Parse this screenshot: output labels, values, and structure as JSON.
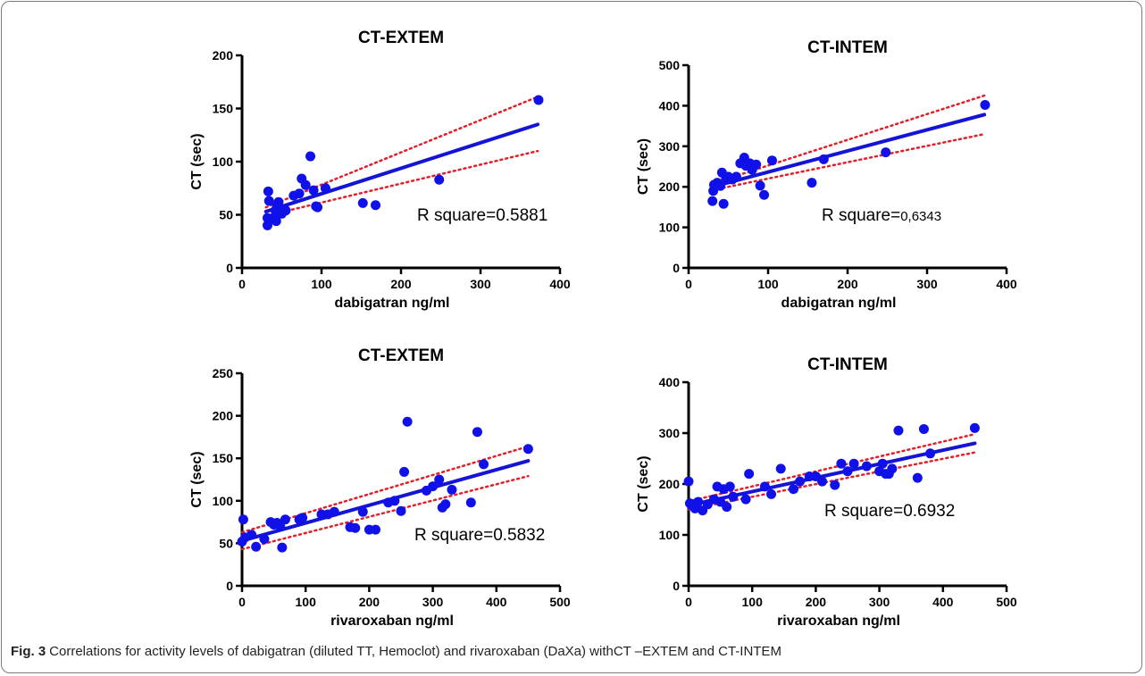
{
  "caption": {
    "label": "Fig. 3",
    "text": "Correlations for activity levels of dabigatran (diluted TT, Hemoclot) and rivaroxaban (DaXa) withCT –EXTEM and CT-INTEM"
  },
  "colors": {
    "points": "#1010e8",
    "fit": "#1414d6",
    "ci": "#e0202a"
  },
  "chart_data": [
    {
      "type": "scatter",
      "title": "CT-EXTEM",
      "xlabel": "dabigatran ng/ml",
      "ylabel": "CT (sec)",
      "xlim": [
        0,
        400
      ],
      "ylim": [
        0,
        200
      ],
      "xticks": [
        0,
        100,
        200,
        300,
        400
      ],
      "yticks": [
        0,
        50,
        100,
        150,
        200
      ],
      "annotation": {
        "prefix": "R square=",
        "value": "0.5881"
      },
      "fit": {
        "x": [
          30,
          372
        ],
        "y": [
          53,
          135
        ]
      },
      "ci_upper": {
        "x": [
          30,
          372
        ],
        "y": [
          57,
          161
        ]
      },
      "ci_lower": {
        "x": [
          30,
          372
        ],
        "y": [
          49,
          110
        ]
      },
      "points": {
        "x": [
          32,
          32,
          33,
          34,
          36,
          40,
          42,
          43,
          44,
          46,
          48,
          50,
          52,
          55,
          65,
          72,
          75,
          80,
          86,
          90,
          93,
          95,
          105,
          152,
          168,
          248,
          373
        ],
        "y": [
          40,
          47,
          72,
          63,
          46,
          47,
          54,
          44,
          58,
          62,
          52,
          51,
          55,
          54,
          68,
          70,
          84,
          78,
          105,
          73,
          58,
          57,
          75,
          61,
          59,
          83,
          158
        ]
      }
    },
    {
      "type": "scatter",
      "title": "CT-INTEM",
      "xlabel": "dabigatran ng/ml",
      "ylabel": "CT (sec)",
      "xlim": [
        0,
        400
      ],
      "ylim": [
        0,
        500
      ],
      "xticks": [
        0,
        100,
        200,
        300,
        400
      ],
      "yticks": [
        0,
        100,
        200,
        300,
        400,
        500
      ],
      "annotation": {
        "prefix": "R square=",
        "value": "0,6343"
      },
      "fit": {
        "x": [
          30,
          372
        ],
        "y": [
          200,
          378
        ]
      },
      "ci_upper": {
        "x": [
          30,
          372
        ],
        "y": [
          208,
          425
        ]
      },
      "ci_lower": {
        "x": [
          30,
          372
        ],
        "y": [
          192,
          330
        ]
      },
      "points": {
        "x": [
          30,
          31,
          32,
          33,
          36,
          40,
          42,
          44,
          47,
          50,
          55,
          60,
          65,
          70,
          72,
          77,
          80,
          85,
          90,
          95,
          105,
          155,
          170,
          248,
          373
        ],
        "y": [
          165,
          190,
          205,
          203,
          210,
          202,
          235,
          158,
          220,
          225,
          218,
          225,
          258,
          272,
          252,
          258,
          242,
          255,
          203,
          180,
          265,
          210,
          268,
          285,
          402
        ]
      }
    },
    {
      "type": "scatter",
      "title": "CT-EXTEM",
      "xlabel": "rivaroxaban ng/ml",
      "ylabel": "CT (sec)",
      "xlim": [
        0,
        500
      ],
      "ylim": [
        0,
        250
      ],
      "xticks": [
        0,
        100,
        200,
        300,
        400,
        500
      ],
      "yticks": [
        0,
        50,
        100,
        150,
        200,
        250
      ],
      "annotation": {
        "prefix": "R square=",
        "value": "0.5832"
      },
      "fit": {
        "x": [
          0,
          450
        ],
        "y": [
          53,
          147
        ]
      },
      "ci_upper": {
        "x": [
          0,
          450
        ],
        "y": [
          63,
          164
        ]
      },
      "ci_lower": {
        "x": [
          0,
          450
        ],
        "y": [
          43,
          129
        ]
      },
      "points": {
        "x": [
          0,
          2,
          5,
          15,
          22,
          35,
          45,
          50,
          55,
          60,
          63,
          68,
          90,
          95,
          125,
          135,
          145,
          170,
          178,
          190,
          200,
          210,
          230,
          240,
          250,
          255,
          260,
          290,
          300,
          310,
          315,
          320,
          330,
          360,
          370,
          380,
          450
        ],
        "y": [
          52,
          78,
          57,
          60,
          46,
          55,
          75,
          72,
          74,
          70,
          45,
          78,
          78,
          80,
          84,
          84,
          87,
          69,
          68,
          87,
          66,
          66,
          98,
          100,
          88,
          134,
          193,
          112,
          117,
          125,
          92,
          96,
          113,
          98,
          181,
          143,
          161
        ]
      }
    },
    {
      "type": "scatter",
      "title": "CT-INTEM",
      "xlabel": "rivaroxaban ng/ml",
      "ylabel": "CT (sec)",
      "xlim": [
        0,
        500
      ],
      "ylim": [
        0,
        400
      ],
      "xticks": [
        0,
        100,
        200,
        300,
        400,
        500
      ],
      "yticks": [
        0,
        100,
        200,
        300,
        400
      ],
      "annotation": {
        "prefix": "R square=",
        "value": "0.6932"
      },
      "fit": {
        "x": [
          0,
          450
        ],
        "y": [
          158,
          280
        ]
      },
      "ci_upper": {
        "x": [
          0,
          450
        ],
        "y": [
          166,
          298
        ]
      },
      "ci_lower": {
        "x": [
          0,
          450
        ],
        "y": [
          150,
          262
        ]
      },
      "points": {
        "x": [
          0,
          2,
          5,
          10,
          15,
          22,
          30,
          40,
          45,
          50,
          55,
          60,
          65,
          70,
          90,
          95,
          120,
          130,
          145,
          165,
          175,
          190,
          200,
          210,
          230,
          240,
          250,
          260,
          280,
          300,
          305,
          310,
          315,
          320,
          330,
          360,
          370,
          380,
          450
        ],
        "y": [
          205,
          162,
          158,
          152,
          165,
          148,
          160,
          170,
          195,
          165,
          190,
          155,
          195,
          175,
          170,
          220,
          195,
          180,
          230,
          190,
          205,
          215,
          215,
          205,
          198,
          240,
          225,
          240,
          235,
          225,
          240,
          220,
          220,
          230,
          305,
          212,
          308,
          260,
          310
        ]
      }
    }
  ]
}
